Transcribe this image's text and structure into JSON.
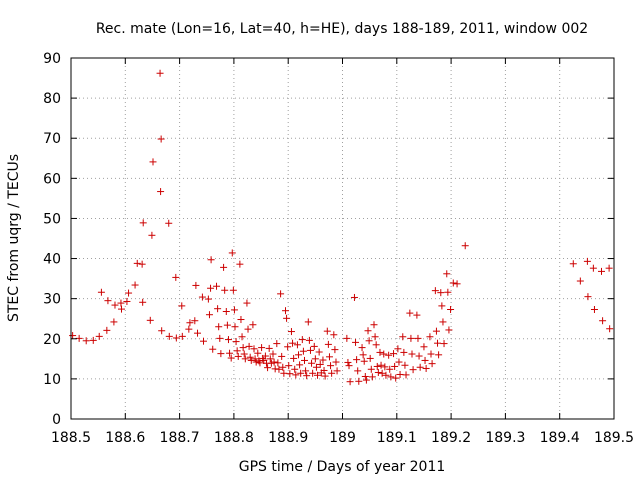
{
  "chart_data": {
    "type": "scatter",
    "title": "Rec. mate (Lon=16, Lat=40, h=HE), days 188-189, 2011, window 002",
    "xlabel": "GPS time / Days of year 2011",
    "ylabel": "STEC from uqrg / TECUs",
    "xlim": [
      188.5,
      189.5
    ],
    "ylim": [
      0,
      90
    ],
    "x_ticks": [
      "188.5",
      "188.6",
      "188.7",
      "188.8",
      "188.9",
      "189",
      "189.1",
      "189.2",
      "189.3",
      "189.4",
      "189.5"
    ],
    "y_ticks": [
      "0",
      "10",
      "20",
      "30",
      "40",
      "50",
      "60",
      "70",
      "80",
      "90"
    ],
    "grid": true,
    "marker": "plus",
    "color": "#cc0000",
    "points": [
      [
        188.503,
        20.8
      ],
      [
        188.515,
        20.1
      ],
      [
        188.528,
        19.5
      ],
      [
        188.541,
        19.6
      ],
      [
        188.552,
        20.6
      ],
      [
        188.556,
        31.6
      ],
      [
        188.568,
        29.5
      ],
      [
        188.566,
        22.1
      ],
      [
        188.579,
        24.2
      ],
      [
        188.581,
        28.4
      ],
      [
        188.592,
        28.9
      ],
      [
        188.593,
        27.4
      ],
      [
        188.603,
        29.3
      ],
      [
        188.606,
        31.4
      ],
      [
        188.618,
        33.4
      ],
      [
        188.622,
        38.8
      ],
      [
        188.631,
        38.6
      ],
      [
        188.633,
        48.9
      ],
      [
        188.632,
        29.1
      ],
      [
        188.646,
        24.6
      ],
      [
        188.649,
        45.8
      ],
      [
        188.651,
        64.1
      ],
      [
        188.664,
        86.2
      ],
      [
        188.666,
        69.8
      ],
      [
        188.665,
        56.7
      ],
      [
        188.667,
        22.0
      ],
      [
        188.68,
        48.8
      ],
      [
        188.681,
        20.6
      ],
      [
        188.693,
        35.3
      ],
      [
        188.694,
        20.2
      ],
      [
        188.704,
        28.2
      ],
      [
        188.705,
        20.6
      ],
      [
        188.717,
        22.4
      ],
      [
        188.719,
        24.0
      ],
      [
        188.728,
        24.5
      ],
      [
        188.73,
        33.3
      ],
      [
        188.733,
        21.4
      ],
      [
        188.742,
        30.4
      ],
      [
        188.744,
        19.4
      ],
      [
        188.753,
        29.9
      ],
      [
        188.755,
        26.0
      ],
      [
        188.757,
        32.6
      ],
      [
        188.758,
        39.7
      ],
      [
        188.761,
        17.4
      ],
      [
        188.768,
        33.1
      ],
      [
        188.77,
        27.5
      ],
      [
        188.772,
        23.0
      ],
      [
        188.774,
        20.1
      ],
      [
        188.776,
        16.3
      ],
      [
        188.781,
        37.8
      ],
      [
        188.783,
        32.1
      ],
      [
        188.786,
        26.8
      ],
      [
        188.788,
        23.4
      ],
      [
        188.79,
        19.8
      ],
      [
        188.792,
        16.4
      ],
      [
        188.795,
        15.2
      ],
      [
        188.797,
        41.4
      ],
      [
        188.799,
        32.1
      ],
      [
        188.801,
        27.2
      ],
      [
        188.802,
        23.0
      ],
      [
        188.804,
        19.3
      ],
      [
        188.806,
        17.0
      ],
      [
        188.808,
        15.6
      ],
      [
        188.811,
        38.6
      ],
      [
        188.813,
        24.8
      ],
      [
        188.815,
        20.5
      ],
      [
        188.817,
        17.8
      ],
      [
        188.819,
        16.2
      ],
      [
        188.821,
        15.0
      ],
      [
        188.824,
        28.9
      ],
      [
        188.826,
        22.4
      ],
      [
        188.828,
        18.1
      ],
      [
        188.83,
        15.4
      ],
      [
        188.832,
        14.6
      ],
      [
        188.835,
        23.5
      ],
      [
        188.837,
        17.5
      ],
      [
        188.839,
        15.0
      ],
      [
        188.841,
        14.2
      ],
      [
        188.844,
        16.4
      ],
      [
        188.846,
        14.5
      ],
      [
        188.848,
        14.0
      ],
      [
        188.851,
        17.8
      ],
      [
        188.853,
        15.1
      ],
      [
        188.855,
        14.6
      ],
      [
        188.858,
        15.7
      ],
      [
        188.86,
        13.9
      ],
      [
        188.862,
        12.8
      ],
      [
        188.865,
        17.6
      ],
      [
        188.867,
        15.0
      ],
      [
        188.869,
        13.9
      ],
      [
        188.872,
        16.2
      ],
      [
        188.874,
        14.2
      ],
      [
        188.876,
        12.5
      ],
      [
        188.879,
        18.8
      ],
      [
        188.881,
        14.0
      ],
      [
        188.883,
        12.4
      ],
      [
        188.886,
        31.2
      ],
      [
        188.888,
        15.6
      ],
      [
        188.89,
        12.9
      ],
      [
        188.892,
        11.4
      ],
      [
        188.895,
        27.0
      ],
      [
        188.897,
        25.1
      ],
      [
        188.899,
        18.0
      ],
      [
        188.901,
        13.3
      ],
      [
        188.903,
        11.3
      ],
      [
        188.906,
        21.8
      ],
      [
        188.908,
        18.9
      ],
      [
        188.91,
        15.1
      ],
      [
        188.912,
        12.4
      ],
      [
        188.914,
        11.0
      ],
      [
        188.917,
        18.5
      ],
      [
        188.919,
        16.0
      ],
      [
        188.921,
        13.5
      ],
      [
        188.923,
        11.4
      ],
      [
        188.926,
        19.8
      ],
      [
        188.928,
        16.9
      ],
      [
        188.93,
        14.6
      ],
      [
        188.932,
        12.0
      ],
      [
        188.934,
        10.8
      ],
      [
        188.937,
        24.2
      ],
      [
        188.939,
        19.6
      ],
      [
        188.941,
        17.1
      ],
      [
        188.943,
        13.9
      ],
      [
        188.945,
        11.4
      ],
      [
        188.948,
        18.1
      ],
      [
        188.95,
        15.0
      ],
      [
        188.952,
        12.9
      ],
      [
        188.954,
        10.9
      ],
      [
        188.957,
        16.7
      ],
      [
        188.959,
        13.6
      ],
      [
        188.961,
        11.5
      ],
      [
        188.964,
        14.7
      ],
      [
        188.966,
        12.1
      ],
      [
        188.968,
        10.7
      ],
      [
        188.972,
        21.9
      ],
      [
        188.974,
        18.6
      ],
      [
        188.976,
        15.5
      ],
      [
        188.978,
        13.3
      ],
      [
        188.98,
        11.4
      ],
      [
        188.984,
        21.0
      ],
      [
        188.986,
        17.3
      ],
      [
        188.988,
        14.2
      ],
      [
        188.99,
        12.0
      ],
      [
        189.008,
        20.1
      ],
      [
        189.01,
        14.1
      ],
      [
        189.012,
        13.3
      ],
      [
        189.014,
        9.3
      ],
      [
        189.022,
        30.3
      ],
      [
        189.024,
        19.1
      ],
      [
        189.026,
        14.8
      ],
      [
        189.028,
        12.0
      ],
      [
        189.03,
        9.4
      ],
      [
        189.036,
        17.8
      ],
      [
        189.038,
        16.0
      ],
      [
        189.04,
        14.4
      ],
      [
        189.042,
        10.6
      ],
      [
        189.044,
        9.7
      ],
      [
        189.047,
        22.0
      ],
      [
        189.049,
        19.5
      ],
      [
        189.051,
        15.1
      ],
      [
        189.053,
        12.4
      ],
      [
        189.055,
        10.5
      ],
      [
        189.058,
        23.5
      ],
      [
        189.06,
        20.5
      ],
      [
        189.062,
        18.5
      ],
      [
        189.064,
        13.1
      ],
      [
        189.066,
        11.6
      ],
      [
        189.069,
        16.6
      ],
      [
        189.071,
        13.4
      ],
      [
        189.073,
        11.4
      ],
      [
        189.076,
        16.2
      ],
      [
        189.078,
        13.0
      ],
      [
        189.08,
        10.9
      ],
      [
        189.085,
        15.9
      ],
      [
        189.087,
        12.4
      ],
      [
        189.089,
        10.5
      ],
      [
        189.094,
        16.3
      ],
      [
        189.096,
        13.1
      ],
      [
        189.098,
        10.2
      ],
      [
        189.102,
        17.5
      ],
      [
        189.104,
        14.2
      ],
      [
        189.106,
        11.1
      ],
      [
        189.111,
        20.5
      ],
      [
        189.113,
        16.6
      ],
      [
        189.115,
        13.4
      ],
      [
        189.117,
        11.0
      ],
      [
        189.124,
        26.4
      ],
      [
        189.126,
        20.1
      ],
      [
        189.128,
        16.2
      ],
      [
        189.13,
        12.3
      ],
      [
        189.137,
        25.9
      ],
      [
        189.139,
        20.1
      ],
      [
        189.141,
        15.7
      ],
      [
        189.143,
        12.9
      ],
      [
        189.15,
        18.0
      ],
      [
        189.152,
        14.6
      ],
      [
        189.154,
        12.6
      ],
      [
        189.161,
        20.5
      ],
      [
        189.163,
        16.2
      ],
      [
        189.165,
        13.8
      ],
      [
        189.171,
        32.0
      ],
      [
        189.173,
        21.9
      ],
      [
        189.175,
        18.9
      ],
      [
        189.177,
        16.0
      ],
      [
        189.181,
        31.5
      ],
      [
        189.183,
        28.2
      ],
      [
        189.185,
        24.2
      ],
      [
        189.187,
        18.8
      ],
      [
        189.192,
        36.2
      ],
      [
        189.194,
        31.6
      ],
      [
        189.196,
        22.2
      ],
      [
        189.199,
        27.3
      ],
      [
        189.204,
        33.9
      ],
      [
        189.211,
        33.7
      ],
      [
        189.226,
        43.2
      ],
      [
        189.425,
        38.7
      ],
      [
        189.438,
        34.4
      ],
      [
        189.451,
        39.3
      ],
      [
        189.452,
        30.5
      ],
      [
        189.462,
        37.6
      ],
      [
        189.464,
        27.3
      ],
      [
        189.477,
        36.8
      ],
      [
        189.479,
        24.5
      ],
      [
        189.491,
        37.6
      ],
      [
        189.492,
        22.5
      ]
    ]
  }
}
